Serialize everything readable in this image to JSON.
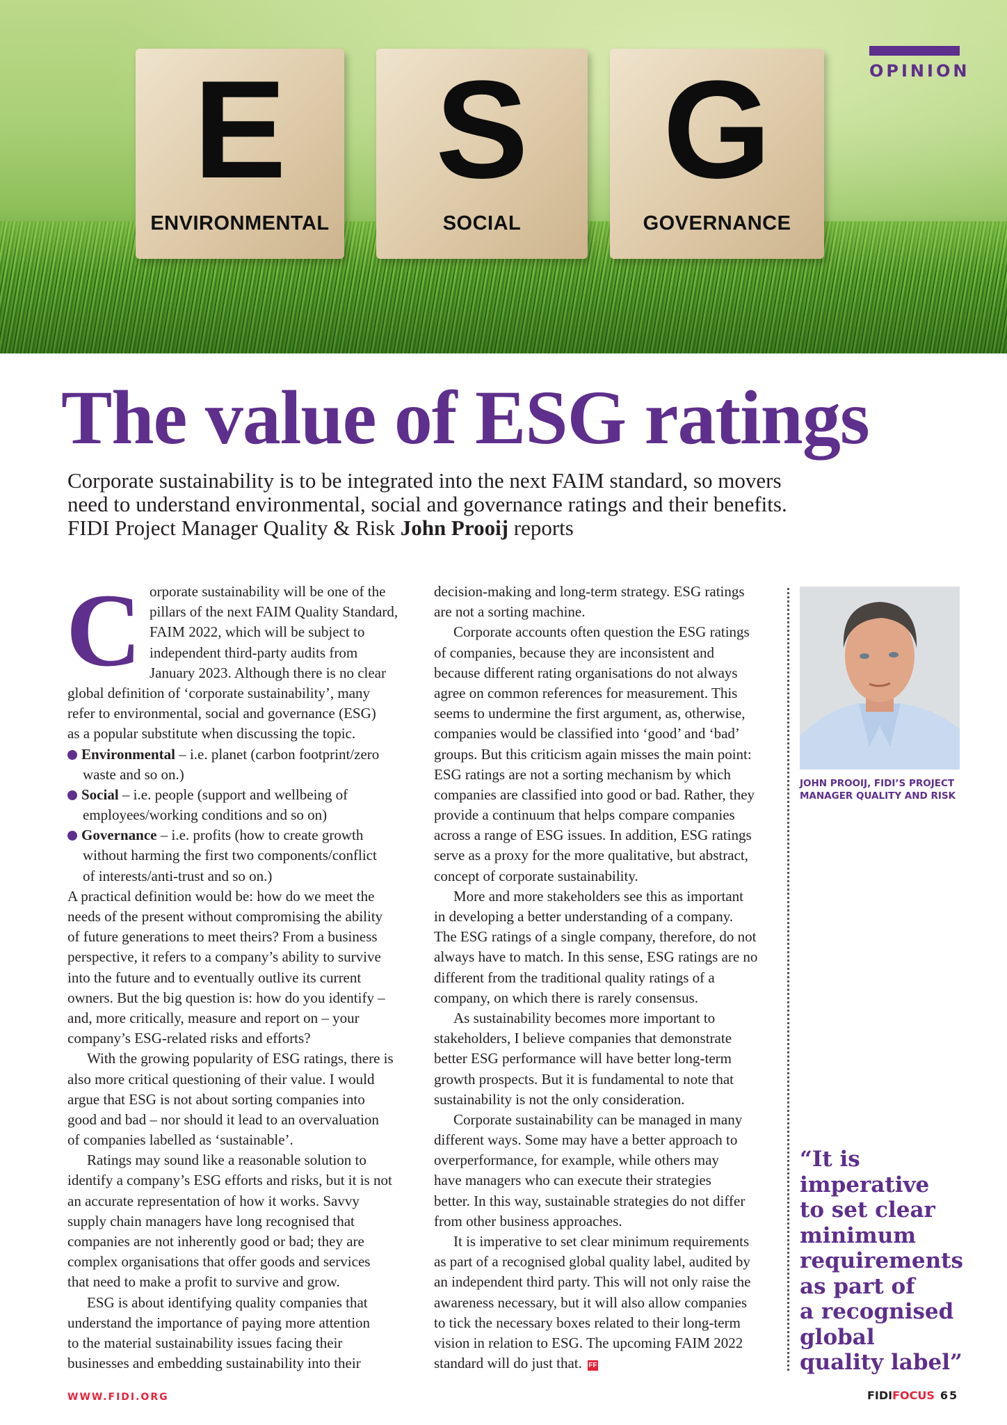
{
  "hero": {
    "blocks": [
      {
        "letter": "E",
        "word": "ENVIRONMENTAL"
      },
      {
        "letter": "S",
        "word": "SOCIAL"
      },
      {
        "letter": "G",
        "word": "GOVERNANCE"
      }
    ]
  },
  "section_label": "OPINION",
  "title": "The value of ESG ratings",
  "standfirst": {
    "text": "Corporate sustainability is to be integrated into the next FAIM standard, so movers need to understand environmental, social and governance ratings and their benefits. FIDI Project Manager Quality & Risk ",
    "author": "John Prooij",
    "suffix": " reports"
  },
  "dropcap": "C",
  "columns": [
    [
      {
        "t": "orporate sustainability will be one of the",
        "s": "dc"
      },
      {
        "t": "pillars of the next FAIM Quality Standard,",
        "s": "dc"
      },
      {
        "t": "FAIM 2022, which will be subject to",
        "s": "dc"
      },
      {
        "t": "independent third-party audits from",
        "s": "dc"
      },
      {
        "t": "January 2023. Although there is no clear",
        "s": "dc"
      },
      {
        "t": "global definition of ‘corporate sustainability’, many"
      },
      {
        "t": "refer to environmental, social and governance (ESG)"
      },
      {
        "t": "as a popular substitute when discussing the topic."
      },
      {
        "b": "Environmental",
        "t": " – i.e. planet (carbon footprint/zero"
      },
      {
        "t": "waste and so on.)",
        "s": "hang"
      },
      {
        "b": "Social",
        "t": " – i.e. people (support and wellbeing of"
      },
      {
        "t": "employees/working conditions and so on)",
        "s": "hang"
      },
      {
        "b": "Governance",
        "t": " – i.e. profits (how to create growth"
      },
      {
        "t": "without harming the first two components/conflict",
        "s": "hang"
      },
      {
        "t": "of interests/anti-trust and so on.)",
        "s": "hang"
      },
      {
        "t": "A practical definition would be: how do we meet the"
      },
      {
        "t": "needs of the present without compromising the ability"
      },
      {
        "t": "of future generations to meet theirs? From a business"
      },
      {
        "t": "perspective, it refers to a company’s ability to survive"
      },
      {
        "t": "into the future and to eventually outlive its current"
      },
      {
        "t": "owners. But the big question is: how do you identify –"
      },
      {
        "t": "and, more critically, measure and report on – your"
      },
      {
        "t": "company’s ESG-related risks and efforts?"
      },
      {
        "t": "With the growing popularity of ESG ratings, there is",
        "s": "ind"
      },
      {
        "t": "also more critical questioning of their value. I would"
      },
      {
        "t": "argue that ESG is not about sorting companies into"
      },
      {
        "t": "good and bad – nor should it lead to an overvaluation"
      },
      {
        "t": "of companies labelled as ‘sustainable’."
      },
      {
        "t": "Ratings may sound like a reasonable solution to",
        "s": "ind"
      },
      {
        "t": "identify a company’s ESG efforts and risks, but it is not"
      },
      {
        "t": "an accurate representation of how it works. Savvy"
      },
      {
        "t": "supply chain managers have long recognised that"
      },
      {
        "t": "companies are not inherently good or bad; they are"
      },
      {
        "t": "complex organisations that offer goods and services"
      },
      {
        "t": "that need to make a profit to survive and grow."
      },
      {
        "t": "ESG is about identifying quality companies that",
        "s": "ind"
      },
      {
        "t": "understand the importance of paying more attention"
      },
      {
        "t": "to the material sustainability issues facing their"
      },
      {
        "t": "businesses and embedding sustainability into their"
      }
    ],
    [
      {
        "t": "decision-making and long-term strategy. ESG ratings"
      },
      {
        "t": "are not a sorting machine."
      },
      {
        "t": "Corporate accounts often question the ESG ratings",
        "s": "ind"
      },
      {
        "t": "of companies, because they are inconsistent and"
      },
      {
        "t": "because different rating organisations do not always"
      },
      {
        "t": "agree on common references for measurement. This"
      },
      {
        "t": "seems to undermine the first argument, as, otherwise,"
      },
      {
        "t": "companies would be classified into ‘good’ and ‘bad’"
      },
      {
        "t": "groups. But this criticism again misses the main point:"
      },
      {
        "t": "ESG ratings are not a sorting mechanism by which"
      },
      {
        "t": "companies are classified into good or bad. Rather, they"
      },
      {
        "t": "provide a continuum that helps compare companies"
      },
      {
        "t": "across a range of ESG issues. In addition, ESG ratings"
      },
      {
        "t": "serve as a proxy for the more qualitative, but abstract,"
      },
      {
        "t": "concept of corporate sustainability."
      },
      {
        "t": "More and more stakeholders see this as important",
        "s": "ind"
      },
      {
        "t": "in developing a better understanding of a company."
      },
      {
        "t": "The ESG ratings of a single company, therefore, do not"
      },
      {
        "t": "always have to match. In this sense, ESG ratings are no"
      },
      {
        "t": "different from the traditional quality ratings of a"
      },
      {
        "t": "company, on which there is rarely consensus."
      },
      {
        "t": "As sustainability becomes more important to",
        "s": "ind"
      },
      {
        "t": "stakeholders, I believe companies that demonstrate"
      },
      {
        "t": "better ESG performance will have better long-term"
      },
      {
        "t": "growth prospects. But it is fundamental to note that"
      },
      {
        "t": "sustainability is not the only consideration."
      },
      {
        "t": "Corporate sustainability can be managed in many",
        "s": "ind"
      },
      {
        "t": "different ways. Some may have a better approach to"
      },
      {
        "t": "overperformance, for example, while others may"
      },
      {
        "t": "have managers who can execute their strategies"
      },
      {
        "t": "better. In this way, sustainable strategies do not differ"
      },
      {
        "t": "from other business approaches."
      },
      {
        "t": "It is imperative to set clear minimum requirements",
        "s": "ind"
      },
      {
        "t": "as part of a recognised global quality label, audited by"
      },
      {
        "t": "an independent third party. This will not only raise the"
      },
      {
        "t": "awareness necessary, but it will also allow companies"
      },
      {
        "t": "to tick the necessary boxes related to their long-term"
      },
      {
        "t": "vision in relation to ESG. The upcoming FAIM 2022"
      },
      {
        "t": "standard will do just that.",
        "end": true
      }
    ]
  ],
  "end_mark": "FF",
  "photo_caption": "John Prooij, FIDI’s Project Manager Quality and Risk",
  "pull_quote": [
    "“It is",
    "imperative",
    "to set clear",
    "minimum",
    "requirements",
    "as part of",
    "a recognised",
    "global",
    "quality label”"
  ],
  "footer": {
    "website": "WWW.FIDI.ORG",
    "brand_a": "FIDI",
    "brand_b": "FOCUS",
    "page": "65"
  },
  "colors": {
    "accent": "#5e2f8c",
    "brand_red": "#e5243b"
  }
}
